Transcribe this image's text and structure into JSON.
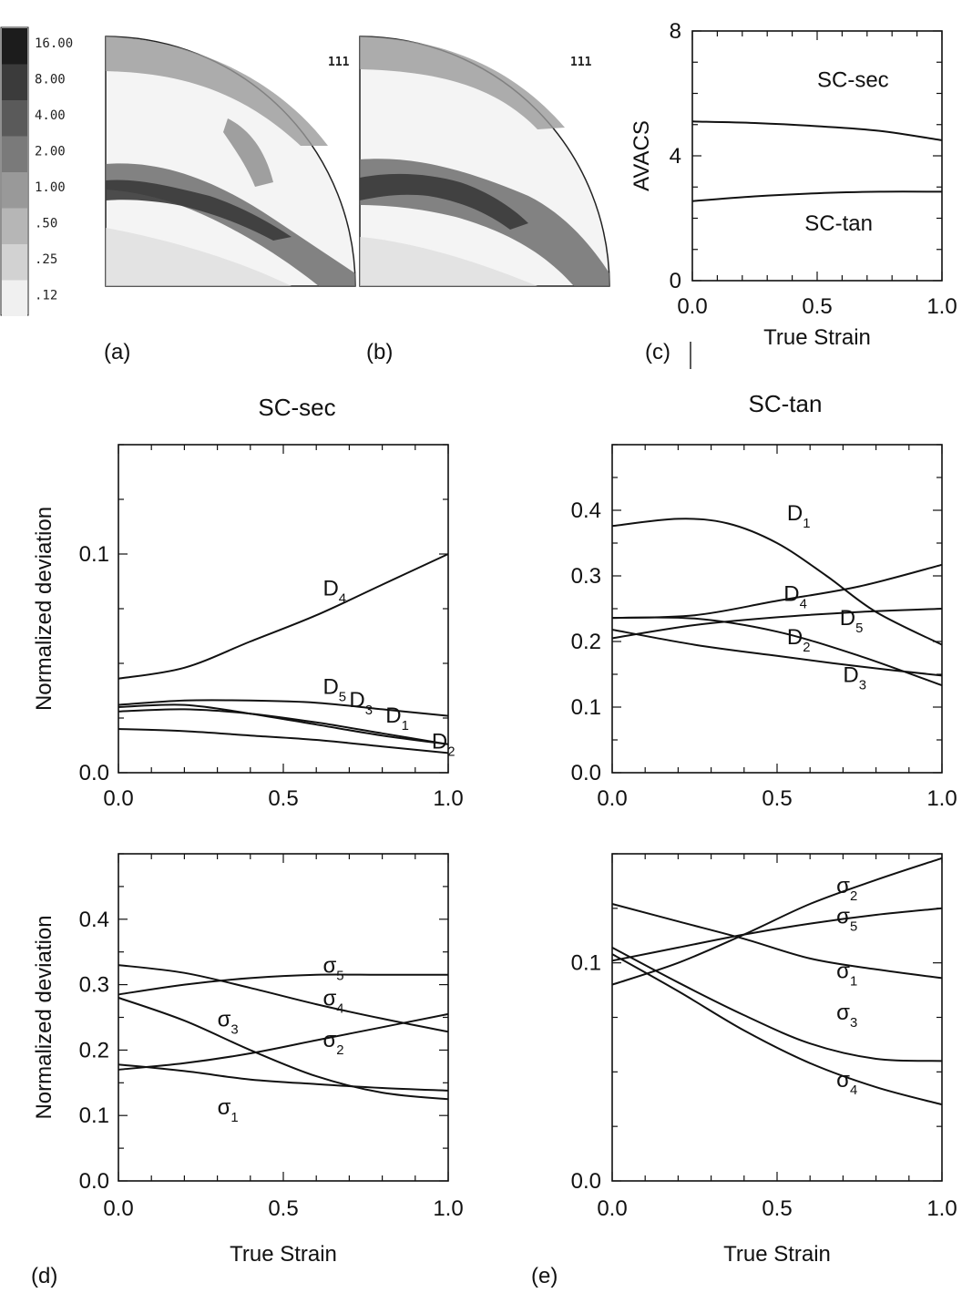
{
  "panel_labels": {
    "a": "(a)",
    "b": "(b)",
    "c": "(c)",
    "d": "(d)",
    "e": "(e)"
  },
  "pole_figures": {
    "legend": [
      "16.00",
      "8.00",
      "4.00",
      "2.00",
      "1.00",
      ".50",
      ".25",
      ".12"
    ],
    "legend_colors": [
      "#1c1c1c",
      "#3b3b3b",
      "#5a5a5a",
      "#7a7a7a",
      "#999999",
      "#b6b6b6",
      "#d2d2d2",
      "#f0f0f0"
    ],
    "a_label": "111",
    "b_label": "111"
  },
  "column_titles": {
    "sec": "SC-sec",
    "tan": "SC-tan"
  },
  "chart_data": [
    {
      "id": "c",
      "type": "line",
      "xlabel": "True Strain",
      "ylabel": "AVACS",
      "xlim": [
        0,
        1
      ],
      "ylim": [
        0,
        8
      ],
      "xticks": [
        "0.0",
        "0.5",
        "1.0"
      ],
      "yticks": [
        "0",
        "4",
        "8"
      ],
      "series": [
        {
          "name": "SC-sec",
          "x": [
            0,
            0.25,
            0.5,
            0.75,
            1.0
          ],
          "y": [
            5.1,
            5.05,
            4.95,
            4.8,
            4.5
          ]
        },
        {
          "name": "SC-tan",
          "x": [
            0,
            0.25,
            0.5,
            0.75,
            1.0
          ],
          "y": [
            2.55,
            2.7,
            2.8,
            2.85,
            2.85
          ]
        }
      ]
    },
    {
      "id": "d-top",
      "type": "line",
      "xlabel": "",
      "ylabel": "Normalized deviation",
      "xlim": [
        0,
        1
      ],
      "ylim": [
        0,
        0.15
      ],
      "xticks": [
        "0.0",
        "0.5",
        "1.0"
      ],
      "yticks": [
        "0.0",
        "0.1"
      ],
      "series": [
        {
          "name": "D4",
          "x": [
            0,
            0.2,
            0.4,
            0.6,
            0.8,
            1.0
          ],
          "y": [
            0.043,
            0.048,
            0.06,
            0.072,
            0.086,
            0.1
          ]
        },
        {
          "name": "D5",
          "x": [
            0,
            0.2,
            0.4,
            0.6,
            0.8,
            1.0
          ],
          "y": [
            0.031,
            0.033,
            0.033,
            0.032,
            0.029,
            0.026
          ]
        },
        {
          "name": "D3",
          "x": [
            0,
            0.2,
            0.4,
            0.6,
            0.8,
            1.0
          ],
          "y": [
            0.03,
            0.031,
            0.027,
            0.022,
            0.017,
            0.013
          ]
        },
        {
          "name": "D1",
          "x": [
            0,
            0.2,
            0.4,
            0.6,
            0.8,
            1.0
          ],
          "y": [
            0.028,
            0.029,
            0.027,
            0.023,
            0.018,
            0.013
          ]
        },
        {
          "name": "D2",
          "x": [
            0,
            0.2,
            0.4,
            0.6,
            0.8,
            1.0
          ],
          "y": [
            0.02,
            0.019,
            0.017,
            0.015,
            0.012,
            0.009
          ]
        }
      ]
    },
    {
      "id": "e-top",
      "type": "line",
      "xlabel": "",
      "ylabel": "",
      "xlim": [
        0,
        1
      ],
      "ylim": [
        0,
        0.5
      ],
      "xticks": [
        "0.0",
        "0.5",
        "1.0"
      ],
      "yticks": [
        "0.0",
        "0.1",
        "0.2",
        "0.3",
        "0.4"
      ],
      "series": [
        {
          "name": "D1",
          "x": [
            0,
            0.2,
            0.35,
            0.5,
            0.65,
            0.8,
            1.0
          ],
          "y": [
            0.376,
            0.387,
            0.38,
            0.35,
            0.3,
            0.245,
            0.195
          ]
        },
        {
          "name": "D4",
          "x": [
            0,
            0.25,
            0.5,
            0.75,
            1.0
          ],
          "y": [
            0.236,
            0.24,
            0.262,
            0.284,
            0.317
          ]
        },
        {
          "name": "D5",
          "x": [
            0,
            0.25,
            0.5,
            0.75,
            1.0
          ],
          "y": [
            0.205,
            0.225,
            0.237,
            0.245,
            0.25
          ]
        },
        {
          "name": "D2",
          "x": [
            0,
            0.25,
            0.5,
            0.75,
            1.0
          ],
          "y": [
            0.236,
            0.235,
            0.215,
            0.178,
            0.133
          ]
        },
        {
          "name": "D3",
          "x": [
            0,
            0.25,
            0.5,
            0.75,
            1.0
          ],
          "y": [
            0.218,
            0.195,
            0.178,
            0.162,
            0.148
          ]
        }
      ]
    },
    {
      "id": "d-bottom",
      "type": "line",
      "xlabel": "True Strain",
      "ylabel": "Normalized deviation",
      "xlim": [
        0,
        1
      ],
      "ylim": [
        0,
        0.5
      ],
      "xticks": [
        "0.0",
        "0.5",
        "1.0"
      ],
      "yticks": [
        "0.0",
        "0.1",
        "0.2",
        "0.3",
        "0.4"
      ],
      "series": [
        {
          "name": "σ5",
          "x": [
            0,
            0.2,
            0.4,
            0.6,
            0.8,
            1.0
          ],
          "y": [
            0.285,
            0.3,
            0.31,
            0.315,
            0.315,
            0.315
          ]
        },
        {
          "name": "σ4",
          "x": [
            0,
            0.2,
            0.4,
            0.6,
            0.8,
            1.0
          ],
          "y": [
            0.33,
            0.318,
            0.295,
            0.27,
            0.248,
            0.228
          ]
        },
        {
          "name": "σ3",
          "x": [
            0,
            0.2,
            0.4,
            0.6,
            0.8,
            1.0
          ],
          "y": [
            0.28,
            0.245,
            0.2,
            0.16,
            0.135,
            0.125
          ]
        },
        {
          "name": "σ2",
          "x": [
            0,
            0.2,
            0.4,
            0.6,
            0.8,
            1.0
          ],
          "y": [
            0.17,
            0.18,
            0.195,
            0.215,
            0.235,
            0.255
          ]
        },
        {
          "name": "σ1",
          "x": [
            0,
            0.2,
            0.4,
            0.6,
            0.8,
            1.0
          ],
          "y": [
            0.178,
            0.168,
            0.155,
            0.148,
            0.142,
            0.138
          ]
        }
      ]
    },
    {
      "id": "e-bottom",
      "type": "line",
      "xlabel": "True Strain",
      "ylabel": "",
      "xlim": [
        0,
        1
      ],
      "ylim": [
        0,
        0.15
      ],
      "xticks": [
        "0.0",
        "0.5",
        "1.0"
      ],
      "yticks": [
        "0.0",
        "0.1"
      ],
      "series": [
        {
          "name": "σ2",
          "x": [
            0,
            0.2,
            0.4,
            0.6,
            0.8,
            1.0
          ],
          "y": [
            0.09,
            0.1,
            0.113,
            0.127,
            0.138,
            0.148
          ]
        },
        {
          "name": "σ5",
          "x": [
            0,
            0.2,
            0.4,
            0.6,
            0.8,
            1.0
          ],
          "y": [
            0.101,
            0.107,
            0.113,
            0.118,
            0.122,
            0.125
          ]
        },
        {
          "name": "σ1",
          "x": [
            0,
            0.2,
            0.4,
            0.6,
            0.8,
            1.0
          ],
          "y": [
            0.127,
            0.119,
            0.111,
            0.102,
            0.097,
            0.093
          ]
        },
        {
          "name": "σ3",
          "x": [
            0,
            0.2,
            0.4,
            0.6,
            0.8,
            1.0
          ],
          "y": [
            0.107,
            0.091,
            0.076,
            0.063,
            0.056,
            0.055
          ]
        },
        {
          "name": "σ4",
          "x": [
            0,
            0.2,
            0.4,
            0.6,
            0.8,
            1.0
          ],
          "y": [
            0.104,
            0.087,
            0.069,
            0.054,
            0.043,
            0.035
          ]
        }
      ]
    }
  ]
}
